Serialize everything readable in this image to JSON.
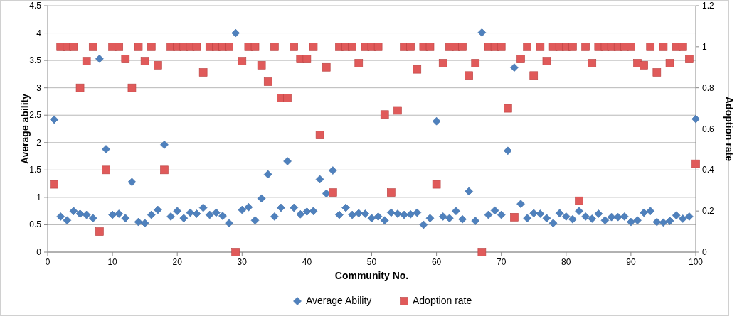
{
  "chart_data": {
    "type": "scatter",
    "xlabel": "Community No.",
    "ylabel": "Average ability",
    "y2label": "Adoption rate",
    "x": [
      1,
      2,
      3,
      4,
      5,
      6,
      7,
      8,
      9,
      10,
      11,
      12,
      13,
      14,
      15,
      16,
      17,
      18,
      19,
      20,
      21,
      22,
      23,
      24,
      25,
      26,
      27,
      28,
      29,
      30,
      31,
      32,
      33,
      34,
      35,
      36,
      37,
      38,
      39,
      40,
      41,
      42,
      43,
      44,
      45,
      46,
      47,
      48,
      49,
      50,
      51,
      52,
      53,
      54,
      55,
      56,
      57,
      58,
      59,
      60,
      61,
      62,
      63,
      64,
      65,
      66,
      67,
      68,
      69,
      70,
      71,
      72,
      73,
      74,
      75,
      76,
      77,
      78,
      79,
      80,
      81,
      82,
      83,
      84,
      85,
      86,
      87,
      88,
      89,
      90,
      91,
      92,
      93,
      94,
      95,
      96,
      97,
      98,
      99,
      100
    ],
    "series": [
      {
        "name": "Average Ability",
        "color": "#4f81bd",
        "marker": "diamond",
        "values": [
          2.42,
          0.65,
          0.58,
          0.75,
          0.7,
          0.68,
          0.62,
          3.53,
          1.88,
          0.68,
          0.7,
          0.62,
          1.28,
          0.55,
          0.53,
          0.68,
          0.77,
          1.96,
          0.65,
          0.75,
          0.62,
          0.72,
          0.7,
          0.81,
          0.68,
          0.72,
          0.66,
          0.53,
          4.0,
          0.77,
          0.82,
          0.58,
          0.98,
          1.42,
          0.65,
          0.81,
          1.66,
          0.81,
          0.69,
          0.74,
          0.75,
          1.33,
          1.07,
          1.49,
          0.68,
          0.81,
          0.68,
          0.71,
          0.7,
          0.62,
          0.65,
          0.58,
          0.72,
          0.7,
          0.68,
          0.69,
          0.72,
          0.5,
          0.62,
          2.39,
          0.65,
          0.62,
          0.75,
          0.6,
          1.11,
          0.57,
          4.01,
          0.68,
          0.76,
          0.68,
          1.85,
          3.37,
          0.88,
          0.62,
          0.71,
          0.7,
          0.62,
          0.53,
          0.71,
          0.65,
          0.6,
          0.75,
          0.65,
          0.61,
          0.7,
          0.58,
          0.64,
          0.64,
          0.65,
          0.55,
          0.58,
          0.72,
          0.75,
          0.55,
          0.54,
          0.57,
          0.67,
          0.61,
          0.65,
          2.43
        ]
      },
      {
        "name": "Adoption rate",
        "color": "#e05a5a",
        "marker": "square",
        "axis": "y2",
        "values": [
          0.33,
          1,
          1,
          1,
          0.8,
          0.93,
          1,
          0.1,
          0.4,
          1,
          1,
          0.94,
          0.8,
          1,
          0.93,
          1,
          0.91,
          0.4,
          1,
          1,
          1,
          1,
          1,
          0.875,
          1,
          1,
          1,
          1,
          0,
          0.93,
          1,
          1,
          0.91,
          0.83,
          1,
          0.75,
          0.75,
          1,
          0.94,
          0.94,
          1,
          0.57,
          0.9,
          0.29,
          1,
          1,
          1,
          0.92,
          1,
          1,
          1,
          0.67,
          0.29,
          0.69,
          1,
          1,
          0.89,
          1,
          1,
          0.33,
          0.92,
          1,
          1,
          1,
          0.86,
          0.92,
          0,
          1,
          1,
          1,
          0.7,
          0.17,
          0.94,
          1,
          0.86,
          1,
          0.93,
          1,
          1,
          1,
          1,
          0.25,
          1,
          0.92,
          1,
          1,
          1,
          1,
          1,
          1,
          0.92,
          0.91,
          1,
          0.875,
          1,
          0.92,
          1,
          1,
          0.94,
          0.43
        ]
      }
    ],
    "xlim": [
      0,
      100
    ],
    "xticks": [
      0,
      10,
      20,
      30,
      40,
      50,
      60,
      70,
      80,
      90,
      100
    ],
    "ylim": [
      0,
      4.5
    ],
    "yticks": [
      0,
      0.5,
      1,
      1.5,
      2,
      2.5,
      3,
      3.5,
      4,
      4.5
    ],
    "y2lim": [
      0,
      1.2
    ],
    "y2ticks": [
      0,
      0.2,
      0.4,
      0.6,
      0.8,
      1,
      1.2
    ],
    "grid": "y",
    "legend": "bottom"
  }
}
